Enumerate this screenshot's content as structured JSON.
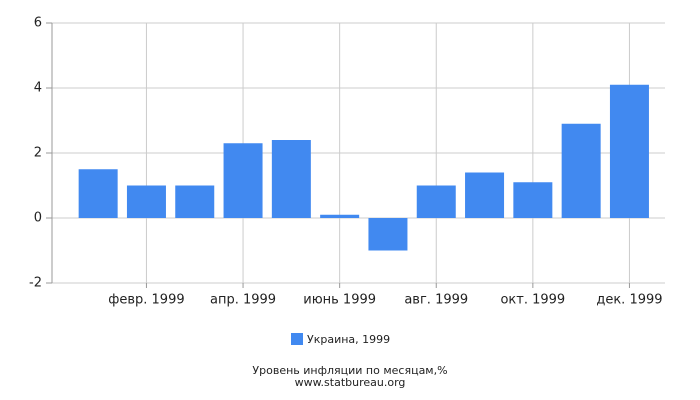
{
  "chart_data": {
    "type": "bar",
    "title": "Уровень инфляции по месяцам,%",
    "source": "www.statbureau.org",
    "categories": [
      null,
      "февр. 1999",
      null,
      "апр. 1999",
      null,
      "июнь 1999",
      null,
      "авг. 1999",
      null,
      "окт. 1999",
      null,
      "дек. 1999"
    ],
    "series": [
      {
        "name": "Украина, 1999",
        "color": "#4189f0",
        "values": [
          1.5,
          1.0,
          1.0,
          2.3,
          2.4,
          0.1,
          -1.0,
          1.0,
          1.4,
          1.1,
          2.9,
          4.1
        ]
      }
    ],
    "ylim": [
      -2,
      6
    ],
    "yticks": [
      -2,
      0,
      2,
      4,
      6
    ],
    "grid": true,
    "legend": "bottom"
  }
}
